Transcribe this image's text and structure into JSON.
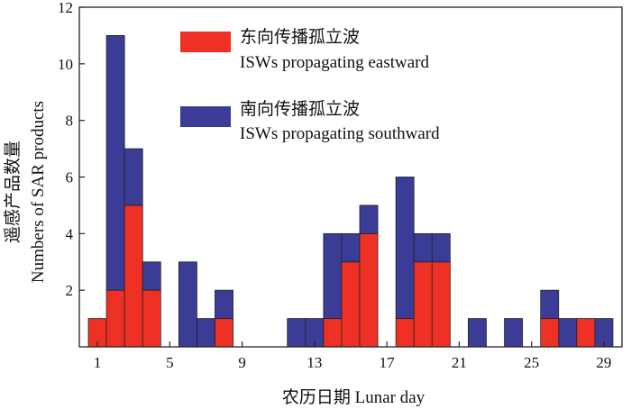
{
  "chart_data": {
    "type": "bar",
    "stacked": true,
    "title": "",
    "xlabel": "农历日期 Lunar day",
    "ylabel_cn": "遥感产品数量",
    "ylabel_en": "Numbers of SAR products",
    "xlim": [
      0,
      30
    ],
    "ylim": [
      0,
      12
    ],
    "xticks": [
      1,
      5,
      9,
      13,
      17,
      21,
      25,
      29
    ],
    "yticks": [
      2,
      4,
      6,
      8,
      10,
      12
    ],
    "grid": false,
    "legend_position": "top-center",
    "x": [
      1,
      2,
      3,
      4,
      5,
      6,
      7,
      8,
      9,
      10,
      11,
      12,
      13,
      14,
      15,
      16,
      17,
      18,
      19,
      20,
      21,
      22,
      23,
      24,
      25,
      26,
      27,
      28,
      29
    ],
    "series": [
      {
        "name_cn": "东向传播孤立波",
        "name_en": "ISWs propagating eastward",
        "color": "#ee3124",
        "values": [
          1,
          2,
          5,
          2,
          0,
          0,
          0,
          1,
          0,
          0,
          0,
          0,
          0,
          1,
          3,
          4,
          0,
          1,
          3,
          3,
          0,
          0,
          0,
          0,
          0,
          1,
          0,
          1,
          0
        ]
      },
      {
        "name_cn": "南向传播孤立波",
        "name_en": "ISWs propagating southward",
        "color": "#3a3c96",
        "values": [
          0,
          9,
          2,
          1,
          0,
          3,
          1,
          1,
          0,
          0,
          0,
          1,
          1,
          3,
          1,
          1,
          0,
          5,
          1,
          1,
          0,
          1,
          0,
          1,
          0,
          1,
          1,
          0,
          1
        ]
      }
    ]
  }
}
